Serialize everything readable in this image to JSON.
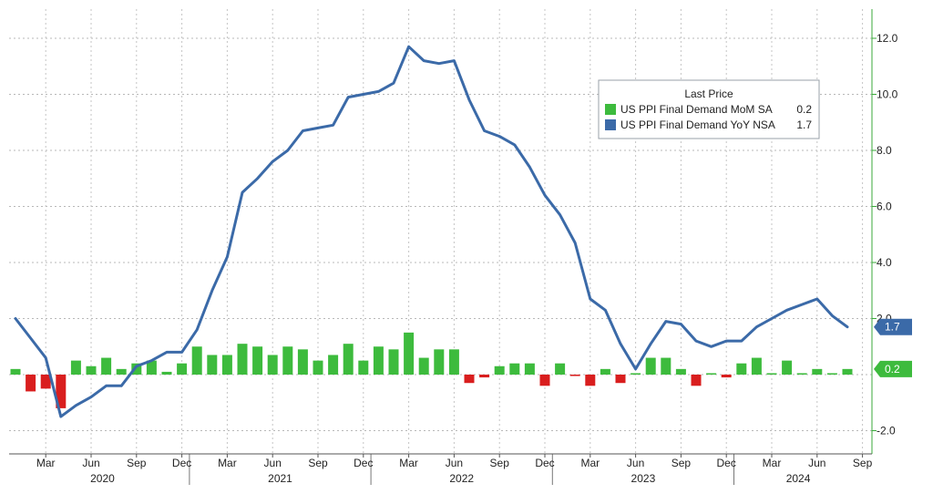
{
  "chart_data": {
    "type": "bar",
    "title": "",
    "xlabel": "",
    "ylabel": "",
    "ylim": [
      -2.5,
      12.5
    ],
    "y_ticks": [
      -2.0,
      2.0,
      4.0,
      6.0,
      8.0,
      10.0,
      12.0
    ],
    "y_tick_labels": [
      "-2.0",
      "2.0",
      "4.0",
      "6.0",
      "8.0",
      "10.0",
      "12.0"
    ],
    "y_axis_side": "right",
    "grid": true,
    "legend": {
      "title": "Last Price",
      "placement": "top-right",
      "entries": [
        {
          "name": "US PPI Final Demand MoM SA",
          "last": "0.2",
          "color": "#3dbb3d"
        },
        {
          "name": "US PPI Final Demand YoY NSA",
          "last": "1.7",
          "color": "#3b6aa8"
        }
      ]
    },
    "x_month_labels": [
      "Mar",
      "Jun",
      "Sep",
      "Dec",
      "Mar",
      "Jun",
      "Sep",
      "Dec",
      "Mar",
      "Jun",
      "Sep",
      "Dec",
      "Mar",
      "Jun",
      "Sep",
      "Dec",
      "Mar",
      "Jun",
      "Sep"
    ],
    "x_year_labels": [
      "2020",
      "2021",
      "2022",
      "2023",
      "2024"
    ],
    "categories": [
      "2020-01",
      "2020-02",
      "2020-03",
      "2020-04",
      "2020-05",
      "2020-06",
      "2020-07",
      "2020-08",
      "2020-09",
      "2020-10",
      "2020-11",
      "2020-12",
      "2021-01",
      "2021-02",
      "2021-03",
      "2021-04",
      "2021-05",
      "2021-06",
      "2021-07",
      "2021-08",
      "2021-09",
      "2021-10",
      "2021-11",
      "2021-12",
      "2022-01",
      "2022-02",
      "2022-03",
      "2022-04",
      "2022-05",
      "2022-06",
      "2022-07",
      "2022-08",
      "2022-09",
      "2022-10",
      "2022-11",
      "2022-12",
      "2023-01",
      "2023-02",
      "2023-03",
      "2023-04",
      "2023-05",
      "2023-06",
      "2023-07",
      "2023-08",
      "2023-09",
      "2023-10",
      "2023-11",
      "2023-12",
      "2024-01",
      "2024-02",
      "2024-03",
      "2024-04",
      "2024-05",
      "2024-06",
      "2024-07",
      "2024-08"
    ],
    "series": [
      {
        "name": "US PPI Final Demand MoM SA",
        "kind": "bar",
        "color_positive": "#3dbb3d",
        "color_negative": "#d91e1e",
        "values": [
          0.2,
          -0.6,
          -0.5,
          -1.2,
          0.5,
          0.3,
          0.6,
          0.2,
          0.4,
          0.5,
          0.1,
          0.4,
          1.0,
          0.7,
          0.7,
          1.1,
          1.0,
          0.7,
          1.0,
          0.9,
          0.5,
          0.7,
          1.1,
          0.5,
          1.0,
          0.9,
          1.5,
          0.6,
          0.9,
          0.9,
          -0.3,
          -0.1,
          0.3,
          0.4,
          0.4,
          -0.4,
          0.4,
          -0.05,
          -0.4,
          0.2,
          -0.3,
          0.05,
          0.6,
          0.6,
          0.2,
          -0.4,
          0.05,
          -0.1,
          0.4,
          0.6,
          0.05,
          0.5,
          0.05,
          0.2,
          0.05,
          0.2
        ]
      },
      {
        "name": "US PPI Final Demand YoY NSA",
        "kind": "line",
        "color": "#3b6aa8",
        "values": [
          2.0,
          1.3,
          0.6,
          -1.5,
          -1.1,
          -0.8,
          -0.4,
          -0.4,
          0.3,
          0.5,
          0.8,
          0.8,
          1.6,
          3.0,
          4.2,
          6.5,
          7.0,
          7.6,
          8.0,
          8.7,
          8.8,
          8.9,
          9.9,
          10.0,
          10.1,
          10.4,
          11.7,
          11.2,
          11.1,
          11.2,
          9.8,
          8.7,
          8.5,
          8.2,
          7.4,
          6.4,
          5.7,
          4.7,
          2.7,
          2.3,
          1.1,
          0.2,
          1.1,
          1.9,
          1.8,
          1.2,
          1.0,
          1.2,
          1.2,
          1.7,
          2.0,
          2.3,
          2.5,
          2.7,
          2.1,
          1.7
        ]
      }
    ],
    "last_value_badges": [
      {
        "label": "1.7",
        "color": "#3b6aa8"
      },
      {
        "label": "0.2",
        "color": "#3dbb3d"
      }
    ]
  }
}
